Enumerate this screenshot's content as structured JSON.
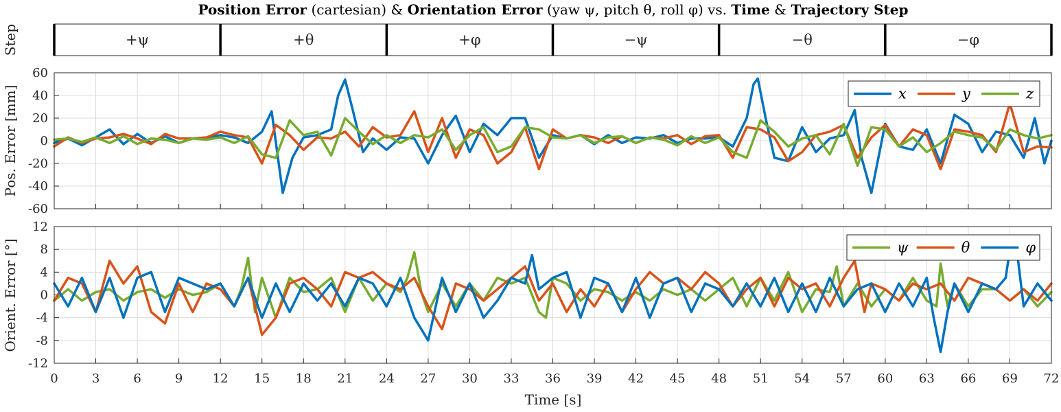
{
  "figure": {
    "title_parts": [
      {
        "text": "Position Error",
        "bold": true
      },
      {
        "text": " (cartesian) & ",
        "bold": false
      },
      {
        "text": "Orientation Error",
        "bold": true
      },
      {
        "text": " (yaw ψ, pitch θ, roll φ) vs. ",
        "bold": false
      },
      {
        "text": "Time",
        "bold": true
      },
      {
        "text": " & ",
        "bold": false
      },
      {
        "text": "Trajectory Step",
        "bold": true
      }
    ],
    "xlabel": "Time [s]"
  },
  "chart_data": [
    {
      "type": "table",
      "ylabel": "Step",
      "xlim": [
        0,
        72
      ],
      "steps": [
        {
          "label": "+ψ",
          "start": 0,
          "end": 12
        },
        {
          "label": "+θ",
          "start": 12,
          "end": 24
        },
        {
          "label": "+φ",
          "start": 24,
          "end": 36
        },
        {
          "label": "−ψ",
          "start": 36,
          "end": 48
        },
        {
          "label": "−θ",
          "start": 48,
          "end": 60
        },
        {
          "label": "−φ",
          "start": 60,
          "end": 72
        }
      ]
    },
    {
      "type": "line",
      "ylabel": "Pos. Error [mm]",
      "xlim": [
        0,
        72
      ],
      "ylim": [
        -60,
        60
      ],
      "xticks": [
        0,
        3,
        6,
        9,
        12,
        15,
        18,
        21,
        24,
        27,
        30,
        33,
        36,
        39,
        42,
        45,
        48,
        51,
        54,
        57,
        60,
        63,
        66,
        69,
        72
      ],
      "yticks": [
        -60,
        -40,
        -20,
        0,
        20,
        40,
        60
      ],
      "grid": true,
      "legend": {
        "placement": "top-right",
        "orientation": "horizontal"
      },
      "series": [
        {
          "name": "x",
          "color": "#0072BD",
          "x": [
            0,
            1,
            2,
            3,
            4,
            5,
            6,
            7,
            8,
            9,
            10,
            11,
            12,
            13,
            14,
            15,
            15.7,
            16.5,
            17.2,
            18,
            19,
            20,
            20.5,
            21,
            21.6,
            22.3,
            23,
            24,
            25,
            26,
            27,
            28,
            29,
            30,
            31,
            32,
            33,
            34,
            35,
            36,
            37,
            38,
            39,
            40,
            41,
            42,
            43,
            44,
            45,
            46,
            47,
            48,
            49,
            50,
            50.5,
            50.8,
            51.4,
            52,
            53,
            54,
            55,
            56,
            57,
            57.8,
            58.3,
            59,
            60,
            61,
            62,
            63,
            64,
            65,
            66,
            67,
            68,
            69,
            70,
            70.8,
            71.5,
            72
          ],
          "y": [
            -2,
            2,
            -4,
            3,
            10,
            -3,
            6,
            -2,
            4,
            -2,
            2,
            3,
            5,
            3,
            -2,
            8,
            26,
            -46,
            -15,
            3,
            5,
            10,
            40,
            54,
            25,
            -10,
            2,
            -8,
            3,
            2,
            -20,
            5,
            22,
            -10,
            15,
            5,
            20,
            20,
            -15,
            5,
            2,
            5,
            -3,
            5,
            -2,
            3,
            2,
            5,
            -2,
            2,
            2,
            3,
            -5,
            20,
            50,
            55,
            18,
            -15,
            -18,
            12,
            -10,
            2,
            5,
            27,
            -15,
            -46,
            15,
            -5,
            -8,
            10,
            -20,
            23,
            15,
            -10,
            8,
            5,
            -15,
            20,
            -20,
            0
          ]
        },
        {
          "name": "y",
          "color": "#D95319",
          "x": [
            0,
            1,
            2,
            3,
            4,
            5,
            6,
            7,
            8,
            9,
            10,
            11,
            12,
            13,
            14,
            15,
            16,
            17,
            18,
            19,
            20,
            21,
            22,
            23,
            24,
            25,
            26,
            27,
            28,
            29,
            30,
            31,
            32,
            33,
            34,
            35,
            36,
            37,
            38,
            39,
            40,
            41,
            42,
            43,
            44,
            45,
            46,
            47,
            48,
            49,
            50,
            51,
            52,
            53,
            54,
            55,
            56,
            57,
            58,
            59,
            60,
            61,
            62,
            63,
            64,
            65,
            66,
            67,
            68,
            69,
            70,
            71,
            72
          ],
          "y": [
            -5,
            3,
            -2,
            2,
            3,
            6,
            2,
            -3,
            6,
            2,
            2,
            3,
            8,
            5,
            3,
            -20,
            14,
            5,
            -8,
            3,
            2,
            8,
            -5,
            12,
            3,
            5,
            26,
            -10,
            20,
            -15,
            10,
            5,
            -20,
            -10,
            12,
            -25,
            10,
            2,
            5,
            3,
            -2,
            4,
            -2,
            3,
            2,
            5,
            -3,
            4,
            5,
            -15,
            12,
            10,
            3,
            -18,
            -10,
            5,
            8,
            14,
            -15,
            3,
            14,
            -5,
            10,
            5,
            -25,
            10,
            8,
            5,
            -10,
            33,
            -10,
            -5,
            -6
          ]
        },
        {
          "name": "z",
          "color": "#77AC30",
          "x": [
            0,
            1,
            2,
            3,
            4,
            5,
            6,
            7,
            8,
            9,
            10,
            11,
            12,
            13,
            14,
            15,
            16,
            17,
            18,
            19,
            20,
            21,
            22,
            23,
            24,
            25,
            26,
            27,
            28,
            29,
            30,
            31,
            32,
            33,
            34,
            35,
            36,
            37,
            38,
            39,
            40,
            41,
            42,
            43,
            44,
            45,
            46,
            47,
            48,
            49,
            50,
            51,
            52,
            53,
            54,
            55,
            56,
            57,
            58,
            59,
            60,
            61,
            62,
            63,
            64,
            65,
            66,
            67,
            68,
            69,
            70,
            71,
            72
          ],
          "y": [
            1,
            2,
            -1,
            3,
            -2,
            4,
            -3,
            2,
            1,
            -2,
            2,
            1,
            3,
            -2,
            4,
            -12,
            -15,
            18,
            5,
            8,
            -13,
            20,
            8,
            -3,
            5,
            -2,
            5,
            3,
            10,
            -8,
            5,
            12,
            -10,
            -5,
            12,
            10,
            3,
            2,
            5,
            -2,
            3,
            4,
            -2,
            3,
            1,
            -4,
            4,
            -2,
            3,
            -10,
            -15,
            18,
            8,
            -5,
            2,
            5,
            -12,
            15,
            -22,
            12,
            10,
            -5,
            3,
            -10,
            -2,
            8,
            5,
            3,
            -8,
            10,
            5,
            2,
            5
          ]
        }
      ]
    },
    {
      "type": "line",
      "ylabel": "Orient. Error [°]",
      "xlim": [
        0,
        72
      ],
      "ylim": [
        -12,
        12
      ],
      "xticks": [
        0,
        3,
        6,
        9,
        12,
        15,
        18,
        21,
        24,
        27,
        30,
        33,
        36,
        39,
        42,
        45,
        48,
        51,
        54,
        57,
        60,
        63,
        66,
        69,
        72
      ],
      "yticks": [
        -12,
        -8,
        -4,
        0,
        4,
        8,
        12
      ],
      "grid": true,
      "legend": {
        "placement": "top-right",
        "orientation": "horizontal"
      },
      "series": [
        {
          "name": "ψ",
          "color": "#77AC30",
          "x": [
            0,
            1,
            2,
            3,
            4,
            5,
            6,
            7,
            8,
            9,
            10,
            11,
            12,
            13,
            13.5,
            14,
            14.5,
            15,
            16,
            17,
            18,
            19,
            20,
            21,
            22,
            23,
            24,
            25,
            25.5,
            26,
            26.5,
            27,
            28,
            29,
            30,
            31,
            32,
            33,
            34,
            35,
            35.5,
            36,
            37,
            38,
            39,
            40,
            41,
            42,
            43,
            44,
            45,
            46,
            47,
            48,
            49,
            50,
            51,
            52,
            53,
            54,
            55,
            56,
            56.5,
            57,
            58,
            59,
            60,
            61,
            62,
            63,
            63.7,
            64,
            64.5,
            65,
            66,
            67,
            68,
            69,
            70,
            71,
            72
          ],
          "y": [
            -1,
            1,
            -1,
            0.5,
            1,
            -1,
            0.5,
            1,
            -0.5,
            1,
            0,
            0.5,
            2,
            -2,
            1,
            6.5,
            -3,
            3,
            -4,
            3,
            0.5,
            1,
            3,
            -3,
            3,
            -1,
            2,
            0.5,
            3,
            7.5,
            0.5,
            -3,
            2,
            -2,
            2,
            -1,
            3,
            2,
            3,
            -3,
            -4,
            3,
            2,
            -1,
            1,
            0.5,
            -1,
            0.5,
            -1,
            1,
            0,
            1,
            -1,
            1,
            3,
            -2,
            3,
            -1,
            4,
            -3,
            1,
            0.5,
            5,
            -2,
            2,
            -2,
            1,
            -1,
            3,
            -1,
            -2,
            5.5,
            -2,
            2,
            -2,
            1,
            1,
            -1,
            1,
            -2,
            0.5
          ]
        },
        {
          "name": "θ",
          "color": "#D95319",
          "x": [
            0,
            1,
            2,
            3,
            4,
            5,
            6,
            7,
            8,
            9,
            10,
            11,
            12,
            13,
            14,
            15,
            16,
            17,
            18,
            19,
            20,
            21,
            22,
            23,
            24,
            25,
            26,
            27,
            28,
            29,
            30,
            31,
            32,
            33,
            34,
            35,
            36,
            37,
            38,
            39,
            40,
            41,
            42,
            43,
            44,
            45,
            46,
            47,
            48,
            49,
            50,
            51,
            52,
            53,
            54,
            55,
            56,
            57,
            57.8,
            58.5,
            59,
            60,
            61,
            62,
            63,
            64,
            65,
            66,
            67,
            68,
            69,
            70,
            71,
            72
          ],
          "y": [
            -1,
            3,
            2,
            -3,
            6,
            2,
            5,
            -3,
            -5,
            2,
            -3,
            2,
            1,
            -2,
            3,
            -7,
            -4,
            2,
            3,
            1,
            -2,
            4,
            3,
            4,
            2,
            1,
            3,
            -2,
            -6,
            2,
            1,
            -1,
            1,
            3,
            5,
            -1,
            2,
            -3,
            1,
            -2,
            2,
            -3,
            1,
            4,
            2,
            3,
            1,
            4,
            2,
            -2,
            1,
            3,
            -2,
            3,
            1,
            2,
            -2,
            3,
            6,
            -3,
            2,
            1,
            -1,
            2,
            1,
            2,
            -1,
            3,
            2,
            1,
            -1,
            1,
            -1,
            2
          ]
        },
        {
          "name": "φ",
          "color": "#0072BD",
          "x": [
            0,
            1,
            2,
            3,
            4,
            5,
            6,
            7,
            8,
            9,
            10,
            11,
            12,
            13,
            14,
            15,
            16,
            17,
            18,
            19,
            20,
            21,
            22,
            23,
            24,
            25,
            26,
            27,
            28,
            29,
            30,
            31,
            32,
            33,
            34,
            34.5,
            35,
            36,
            37,
            38,
            39,
            40,
            41,
            42,
            43,
            44,
            45,
            46,
            47,
            48,
            49,
            50,
            51,
            52,
            53,
            54,
            55,
            56,
            57,
            58,
            59,
            60,
            61,
            62,
            63,
            63.5,
            64,
            64.5,
            65,
            66,
            67,
            68,
            68.7,
            69,
            69.5,
            70,
            71,
            72
          ],
          "y": [
            2,
            -2,
            3,
            -3,
            3,
            -4,
            3,
            4,
            -3,
            3,
            2,
            1,
            2,
            -2,
            3,
            -4,
            2,
            -3,
            2,
            -1,
            2,
            -2,
            3,
            2,
            -2,
            3,
            -4,
            -8,
            3,
            -3,
            2,
            -4,
            -1,
            3,
            2,
            7,
            1,
            3,
            4,
            -4,
            3,
            2,
            -3,
            3,
            -4,
            2,
            3,
            -3,
            2,
            1,
            -2,
            2,
            -2,
            3,
            -3,
            2,
            -3,
            3,
            -2,
            1,
            2,
            -3,
            2,
            -2,
            3,
            -4,
            -10,
            -3,
            2,
            -3,
            2,
            1,
            3,
            8,
            8,
            -2,
            2,
            -1
          ]
        }
      ]
    }
  ]
}
